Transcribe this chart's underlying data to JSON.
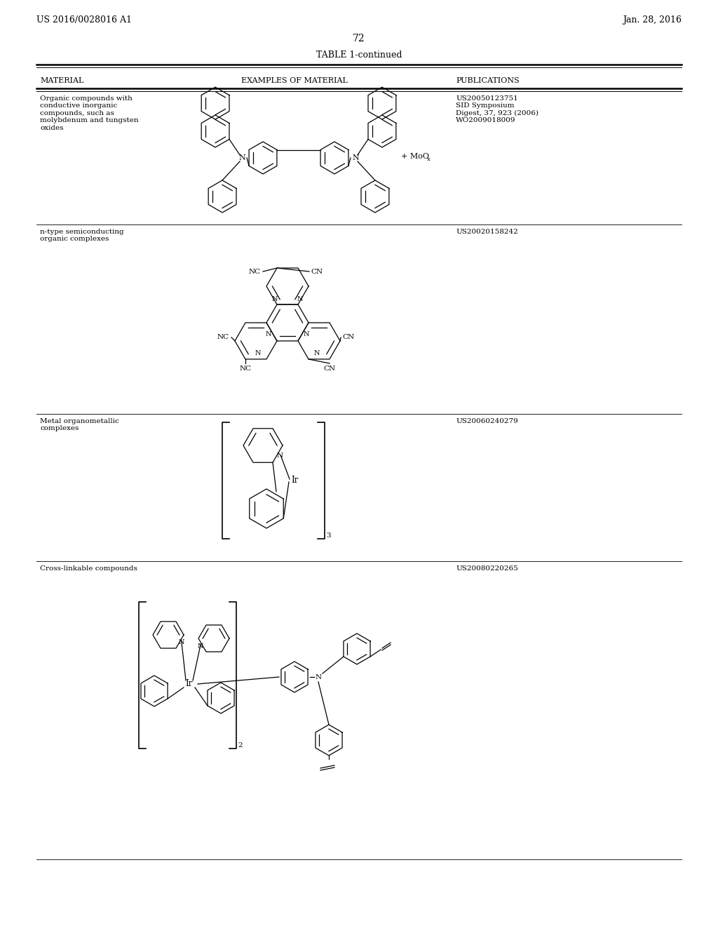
{
  "background_color": "#ffffff",
  "header_left": "US 2016/0028016 A1",
  "header_right": "Jan. 28, 2016",
  "page_number": "72",
  "table_title": "TABLE 1-continued",
  "col1_header": "MATERIAL",
  "col2_header": "EXAMPLES OF MATERIAL",
  "col3_header": "PUBLICATIONS",
  "row1_material": "Organic compounds with\nconductive inorganic\ncompounds, such as\nmolybdenum and tungsten\noxides",
  "row1_pub": "US20050123751\nSID Symposium\nDigest, 37, 923 (2006)\nWO2009018009",
  "row2_material": "n-type semiconducting\norganic complexes",
  "row2_pub": "US20020158242",
  "row3_material": "Metal organometallic\ncomplexes",
  "row3_pub": "US20060240279",
  "row4_material": "Cross-linkable compounds",
  "row4_pub": "US20080220265"
}
